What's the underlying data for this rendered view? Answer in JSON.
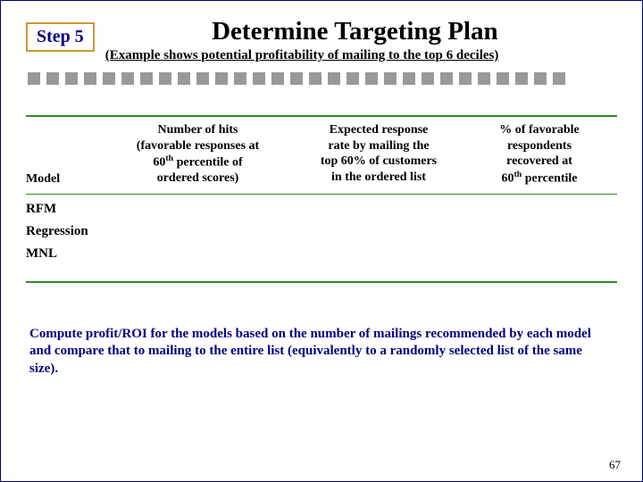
{
  "step_label": "Step 5",
  "title": "Determine Targeting Plan",
  "subtitle": "(Example shows potential profitability of mailing to the top 6 deciles)",
  "squares": {
    "count": 29,
    "color": "#999999",
    "size": 14,
    "gap": 7
  },
  "rule_color": "#2e8b2e",
  "table": {
    "headers": {
      "model": "Model",
      "hits_l1": "Number of hits",
      "hits_l2": "(favorable responses at",
      "hits_l3_pre": "60",
      "hits_l3_sup": "th",
      "hits_l3_post": " percentile of",
      "hits_l4": "ordered scores)",
      "resp_l1": "Expected response",
      "resp_l2": "rate by mailing the",
      "resp_l3": "top 60% of customers",
      "resp_l4": "in the ordered list",
      "fav_l1": "% of favorable",
      "fav_l2": "respondents",
      "fav_l3": "recovered at",
      "fav_l4_pre": "60",
      "fav_l4_sup": "th",
      "fav_l4_post": " percentile"
    },
    "rows": [
      "RFM",
      "Regression",
      "MNL"
    ]
  },
  "footer": "Compute profit/ROI for the models based on the number of mailings recommended by each model and compare that to mailing to the entire list (equivalently to a randomly selected list of the same size).",
  "page_number": "67",
  "colors": {
    "border": "#000080",
    "step_border": "#cc9933",
    "step_text": "#000080",
    "footer_text": "#000080"
  }
}
